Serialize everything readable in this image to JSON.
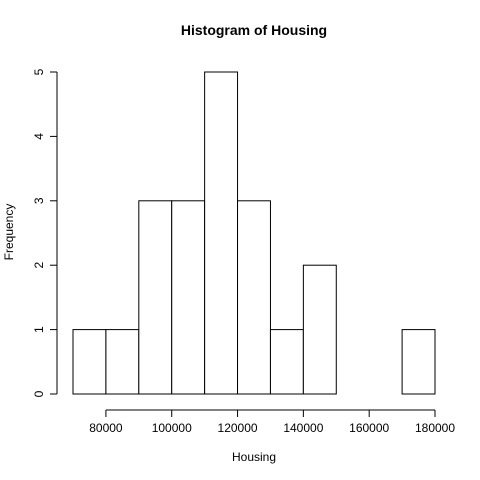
{
  "chart_data": {
    "type": "bar",
    "title": "Histogram of Housing",
    "xlabel": "Housing",
    "ylabel": "Frequency",
    "bins": [
      {
        "start": 70000,
        "end": 80000,
        "count": 1
      },
      {
        "start": 80000,
        "end": 90000,
        "count": 1
      },
      {
        "start": 90000,
        "end": 100000,
        "count": 3
      },
      {
        "start": 100000,
        "end": 110000,
        "count": 3
      },
      {
        "start": 110000,
        "end": 120000,
        "count": 5
      },
      {
        "start": 120000,
        "end": 130000,
        "count": 3
      },
      {
        "start": 130000,
        "end": 140000,
        "count": 1
      },
      {
        "start": 140000,
        "end": 150000,
        "count": 2
      },
      {
        "start": 150000,
        "end": 160000,
        "count": 0
      },
      {
        "start": 160000,
        "end": 170000,
        "count": 0
      },
      {
        "start": 170000,
        "end": 180000,
        "count": 1
      }
    ],
    "xlim": [
      70000,
      180000
    ],
    "ylim": [
      0,
      5
    ],
    "x_ticks": [
      80000,
      100000,
      120000,
      140000,
      160000,
      180000
    ],
    "x_tick_labels": [
      "80000",
      "100000",
      "120000",
      "140000",
      "160000",
      "180000"
    ],
    "y_ticks": [
      0,
      1,
      2,
      3,
      4,
      5
    ],
    "y_tick_labels": [
      "0",
      "1",
      "2",
      "3",
      "4",
      "5"
    ],
    "grid": false,
    "colors": {
      "bar_fill": "#ffffff",
      "bar_stroke": "#000000"
    }
  }
}
